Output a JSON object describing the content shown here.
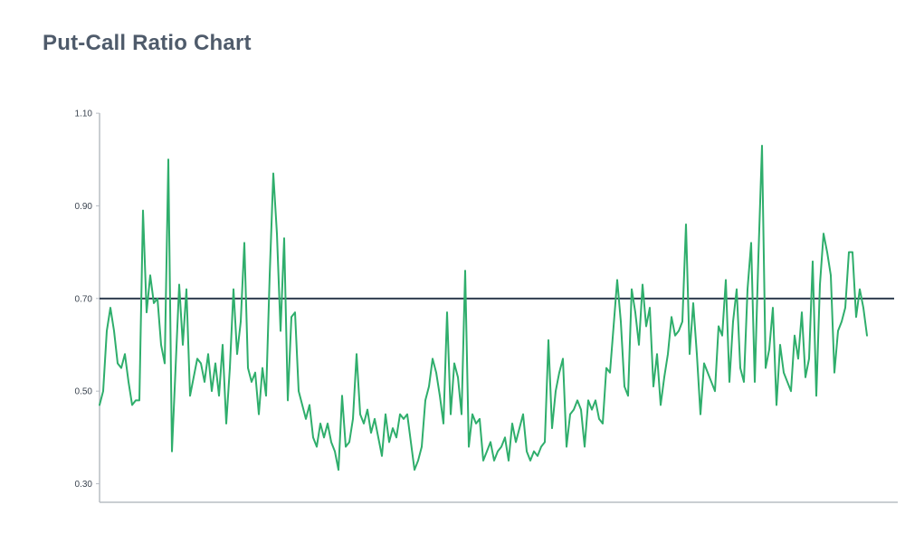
{
  "header": {
    "title": "Put-Call Ratio Chart"
  },
  "colors": {
    "series": "#2fae6c",
    "reference_line": "#2e3d4f",
    "axis": "#b8bdc4"
  },
  "chart_data": {
    "type": "line",
    "title": "Put-Call Ratio Chart",
    "xlabel": "",
    "ylabel": "",
    "ylim": [
      0.26,
      1.11
    ],
    "yticks": [
      1.1,
      0.9,
      0.7,
      0.5,
      0.3
    ],
    "ytick_labels": [
      "1.10",
      "0.90",
      "0.70",
      "0.50",
      "0.30"
    ],
    "grid": false,
    "reference_line": {
      "y": 0.7
    },
    "series": [
      {
        "values": [
          0.47,
          0.5,
          0.63,
          0.68,
          0.63,
          0.56,
          0.55,
          0.58,
          0.52,
          0.47,
          0.48,
          0.48,
          0.89,
          0.67,
          0.75,
          0.69,
          0.7,
          0.6,
          0.56,
          1.0,
          0.37,
          0.55,
          0.73,
          0.6,
          0.72,
          0.49,
          0.53,
          0.57,
          0.56,
          0.52,
          0.58,
          0.5,
          0.56,
          0.49,
          0.6,
          0.43,
          0.55,
          0.72,
          0.58,
          0.65,
          0.82,
          0.55,
          0.52,
          0.54,
          0.45,
          0.55,
          0.49,
          0.75,
          0.97,
          0.84,
          0.63,
          0.83,
          0.48,
          0.66,
          0.67,
          0.5,
          0.47,
          0.44,
          0.47,
          0.4,
          0.38,
          0.43,
          0.4,
          0.43,
          0.39,
          0.37,
          0.33,
          0.49,
          0.38,
          0.39,
          0.44,
          0.58,
          0.45,
          0.43,
          0.46,
          0.41,
          0.44,
          0.4,
          0.36,
          0.45,
          0.39,
          0.42,
          0.4,
          0.45,
          0.44,
          0.45,
          0.39,
          0.33,
          0.35,
          0.38,
          0.48,
          0.51,
          0.57,
          0.54,
          0.49,
          0.43,
          0.67,
          0.45,
          0.56,
          0.53,
          0.45,
          0.76,
          0.38,
          0.45,
          0.43,
          0.44,
          0.35,
          0.37,
          0.39,
          0.35,
          0.37,
          0.38,
          0.4,
          0.35,
          0.43,
          0.39,
          0.42,
          0.45,
          0.37,
          0.35,
          0.37,
          0.36,
          0.38,
          0.39,
          0.61,
          0.42,
          0.5,
          0.54,
          0.57,
          0.38,
          0.45,
          0.46,
          0.48,
          0.46,
          0.38,
          0.48,
          0.46,
          0.48,
          0.44,
          0.43,
          0.55,
          0.54,
          0.64,
          0.74,
          0.65,
          0.51,
          0.49,
          0.72,
          0.67,
          0.6,
          0.73,
          0.64,
          0.68,
          0.51,
          0.58,
          0.47,
          0.53,
          0.58,
          0.66,
          0.62,
          0.63,
          0.65,
          0.86,
          0.58,
          0.69,
          0.58,
          0.45,
          0.56,
          0.54,
          0.52,
          0.5,
          0.64,
          0.62,
          0.74,
          0.52,
          0.65,
          0.72,
          0.55,
          0.52,
          0.72,
          0.82,
          0.52,
          0.79,
          1.03,
          0.55,
          0.59,
          0.68,
          0.47,
          0.6,
          0.54,
          0.52,
          0.5,
          0.62,
          0.57,
          0.67,
          0.53,
          0.57,
          0.78,
          0.49,
          0.73,
          0.84,
          0.8,
          0.75,
          0.54,
          0.63,
          0.65,
          0.68,
          0.8,
          0.8,
          0.66,
          0.72,
          0.68,
          0.62
        ]
      }
    ]
  }
}
